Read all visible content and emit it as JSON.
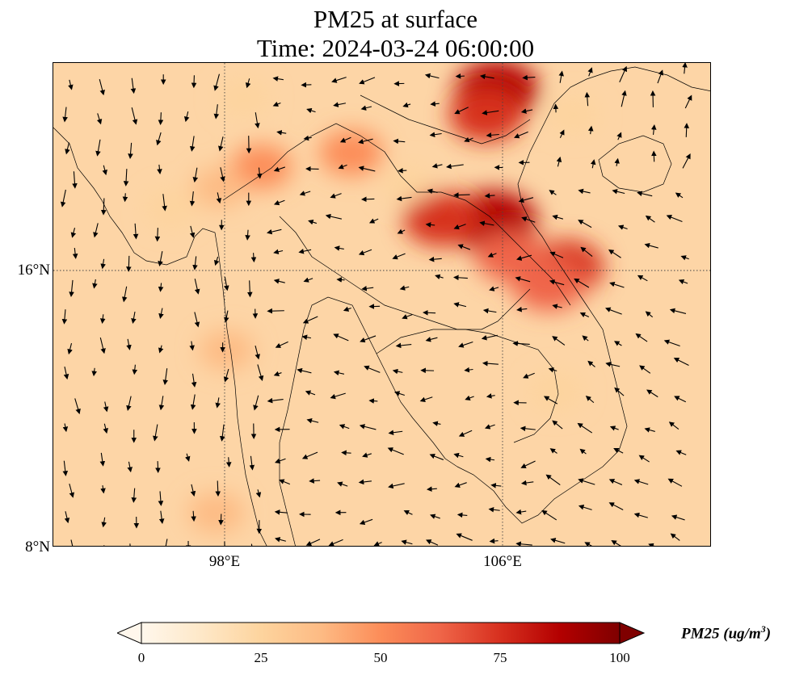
{
  "title_line1": "PM25 at surface",
  "title_line2": "Time: 2024-03-24 06:00:00",
  "axes": {
    "lat_ticks": [
      {
        "value": 16,
        "label": "16°N"
      },
      {
        "value": 8,
        "label": "8°N"
      }
    ],
    "lon_ticks": [
      {
        "value": 98,
        "label": "98°E"
      },
      {
        "value": 106,
        "label": "106°E"
      }
    ],
    "lon_range": [
      93,
      112
    ],
    "lat_range": [
      8,
      22
    ],
    "gridlines": "dotted"
  },
  "colorbar": {
    "label_main": "PM25 (ug/m",
    "label_sup": "3",
    "label_end": ")",
    "min": 0,
    "max": 100,
    "extend": "both",
    "ticks": [
      {
        "value": 0,
        "label": "0"
      },
      {
        "value": 25,
        "label": "25"
      },
      {
        "value": 50,
        "label": "50"
      },
      {
        "value": 75,
        "label": "75"
      },
      {
        "value": 100,
        "label": "100"
      }
    ],
    "colormap": "OrRd",
    "colors": [
      "#fff7ec",
      "#fee8c8",
      "#fdd49e",
      "#fdbb84",
      "#fc8d59",
      "#ef6548",
      "#d7301f",
      "#b30000",
      "#7f0000"
    ]
  },
  "hotspots": [
    {
      "lon": 105.8,
      "lat": 21.2,
      "value": 85
    },
    {
      "lon": 105.5,
      "lat": 20.5,
      "value": 70
    },
    {
      "lon": 105.7,
      "lat": 17.4,
      "value": 92
    },
    {
      "lon": 104.2,
      "lat": 17.5,
      "value": 72
    },
    {
      "lon": 107.8,
      "lat": 16.1,
      "value": 70
    },
    {
      "lon": 107.3,
      "lat": 15.6,
      "value": 68
    },
    {
      "lon": 106.2,
      "lat": 16.4,
      "value": 62
    },
    {
      "lon": 101.6,
      "lat": 19.4,
      "value": 50
    },
    {
      "lon": 99.0,
      "lat": 19.0,
      "value": 45
    },
    {
      "lon": 97.8,
      "lat": 18.4,
      "value": 35
    },
    {
      "lon": 96.4,
      "lat": 17.8,
      "value": 30
    },
    {
      "lon": 98.0,
      "lat": 13.7,
      "value": 35
    },
    {
      "lon": 97.7,
      "lat": 9.0,
      "value": 38
    },
    {
      "lon": 103.2,
      "lat": 18.5,
      "value": 28
    },
    {
      "lon": 107.5,
      "lat": 12.5,
      "value": 30
    },
    {
      "lon": 98.5,
      "lat": 21.0,
      "value": 28
    },
    {
      "lon": 108.0,
      "lat": 20.5,
      "value": 25
    }
  ]
}
